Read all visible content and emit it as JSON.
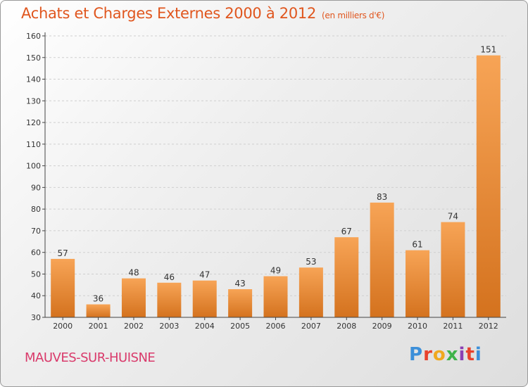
{
  "header": {
    "title": "Achats et Charges Externes 2000 à 2012",
    "unit": "(en milliers d'€)"
  },
  "footer": {
    "commune": "MAUVES-SUR-HUISNE",
    "logo_text": "Proxiti",
    "logo_colors": [
      "#3c8fd9",
      "#e8412c",
      "#f0a81e",
      "#3fb34a",
      "#8b3fb3",
      "#e8412c",
      "#3c8fd9"
    ]
  },
  "colors": {
    "bar_light": "#f7a456",
    "bar_dark": "#d4721e",
    "axis": "#444444",
    "grid": "#cfcfcf"
  },
  "chart_data": {
    "type": "bar",
    "title": "Achats et Charges Externes 2000 à 2012",
    "subtitle": "(en milliers d'€)",
    "xlabel": "",
    "ylabel": "",
    "categories": [
      "2000",
      "2001",
      "2002",
      "2003",
      "2004",
      "2005",
      "2006",
      "2007",
      "2008",
      "2009",
      "2010",
      "2011",
      "2012"
    ],
    "values": [
      57,
      36,
      48,
      46,
      47,
      43,
      49,
      53,
      67,
      83,
      61,
      74,
      151
    ],
    "ylim": [
      30,
      160
    ],
    "yticks": [
      30,
      40,
      50,
      60,
      70,
      80,
      90,
      100,
      110,
      120,
      130,
      140,
      150,
      160
    ],
    "grid": true,
    "data_labels": true
  }
}
